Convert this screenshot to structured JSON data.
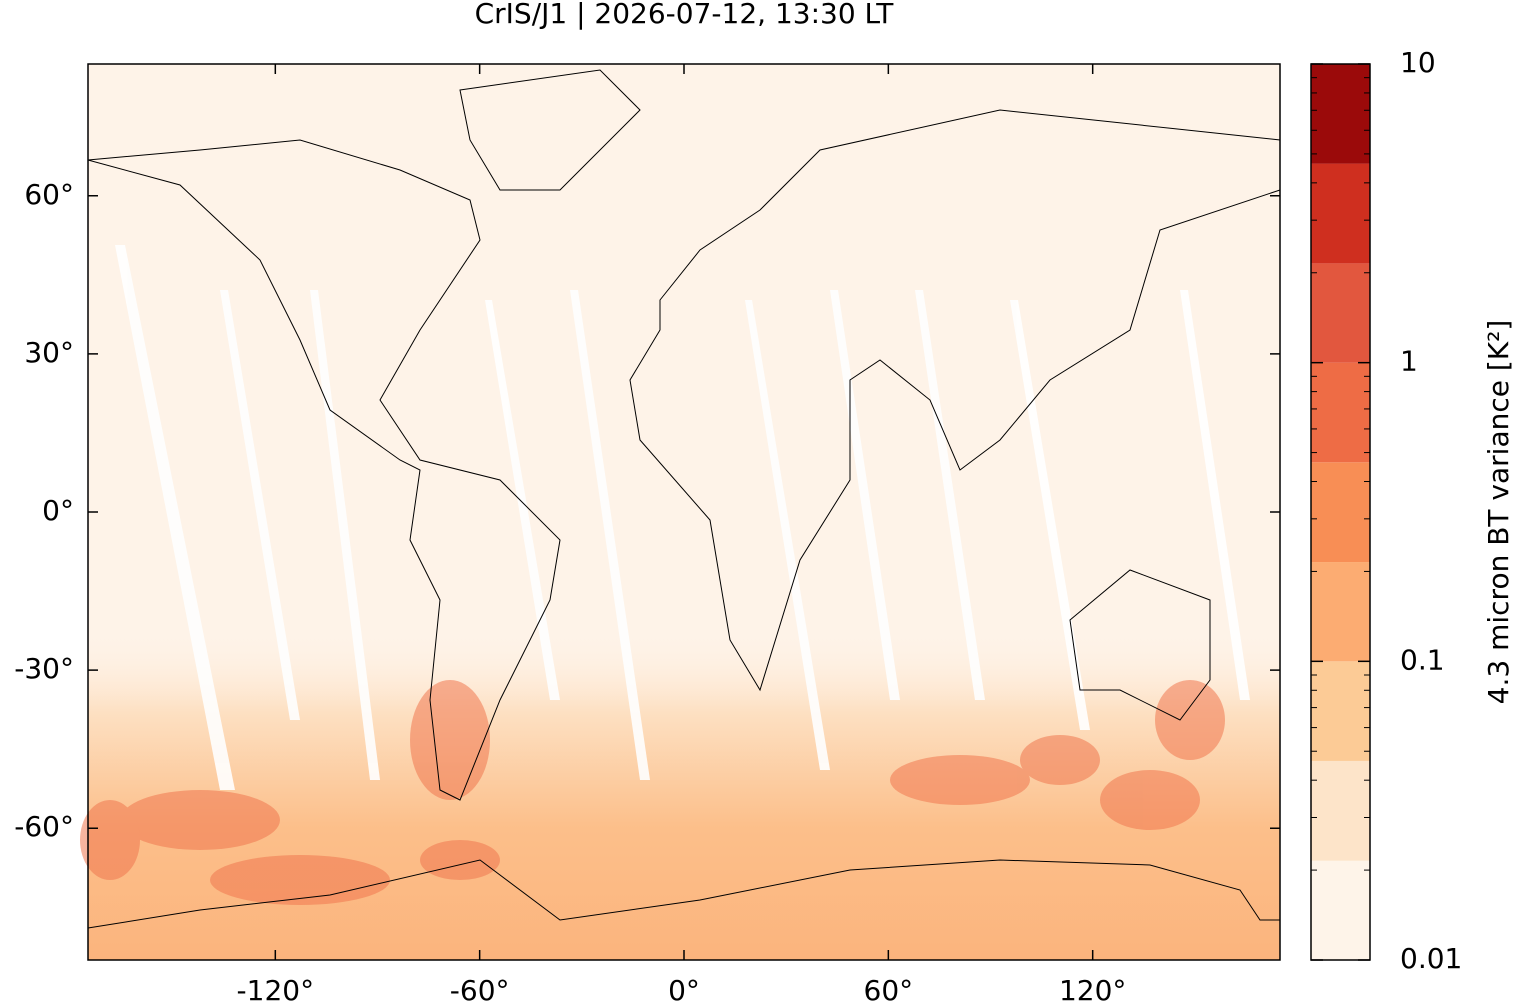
{
  "chart_data": {
    "type": "map",
    "title": "CrIS/J1 | 2026-07-12, 13:30 LT",
    "xlim": [
      -175,
      175
    ],
    "ylim": [
      -85,
      85
    ],
    "xticks": [
      {
        "value": -120,
        "label": "-120°"
      },
      {
        "value": -60,
        "label": "-60°"
      },
      {
        "value": 0,
        "label": "0°"
      },
      {
        "value": 60,
        "label": "60°"
      },
      {
        "value": 120,
        "label": "120°"
      }
    ],
    "yticks": [
      {
        "value": -60,
        "label": "-60°"
      },
      {
        "value": -30,
        "label": "-30°"
      },
      {
        "value": 0,
        "label": "0°"
      },
      {
        "value": 30,
        "label": "30°"
      },
      {
        "value": 60,
        "label": "60°"
      }
    ],
    "colorbar": {
      "label": "4.3 micron BT variance [K²]",
      "log_scale": true,
      "clim": [
        0.01,
        10
      ],
      "levels": [
        0.01,
        0.0215,
        0.0464,
        0.1,
        0.215,
        0.464,
        1,
        2.15,
        4.64,
        10
      ],
      "colors": [
        "#fef4e9",
        "#fde4c9",
        "#fccb96",
        "#fcac72",
        "#f88e55",
        "#ee6c45",
        "#e2573e",
        "#cf2f1f",
        "#9b0a0a"
      ],
      "ticks": [
        0.01,
        0.1,
        1,
        10
      ],
      "minor_ticks": [
        0.02,
        0.03,
        0.04,
        0.05,
        0.06,
        0.07,
        0.08,
        0.09,
        0.2,
        0.3,
        0.4,
        0.5,
        0.6,
        0.7,
        0.8,
        0.9,
        2,
        3,
        4,
        5,
        6,
        7,
        8,
        9
      ]
    }
  }
}
